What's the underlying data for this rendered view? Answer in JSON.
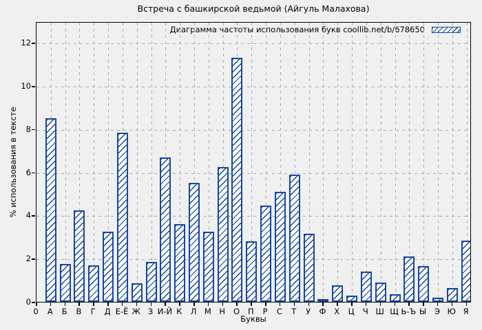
{
  "colors": {
    "bar_blue": "#1447a0",
    "bar_fill": "#fbfbfb",
    "grid_gray": "#a9a9a9",
    "background": "#f0f0f0",
    "axis_black": "#000000"
  },
  "chart_data": {
    "type": "bar",
    "title": "Встреча с башкирской ведьмой (Айгуль Малахова)",
    "legend": "Диаграмма частоты использования букв coollib.net/b/678650",
    "legend_position": "top-right-inside",
    "xlabel": "Буквы",
    "ylabel": "% использования в тексте",
    "origin_tick_label": "0",
    "categories": [
      "А",
      "Б",
      "В",
      "Г",
      "Д",
      "Е-Ё",
      "Ж",
      "З",
      "И-Й",
      "К",
      "Л",
      "М",
      "Н",
      "О",
      "П",
      "Р",
      "С",
      "Т",
      "У",
      "Ф",
      "Х",
      "Ц",
      "Ч",
      "Ш",
      "Щ",
      "Ь-Ъ",
      "Ы",
      "Э",
      "Ю",
      "Я"
    ],
    "values": [
      8.5,
      1.75,
      4.25,
      1.7,
      3.25,
      7.85,
      0.85,
      1.85,
      6.7,
      3.6,
      5.5,
      3.25,
      6.25,
      11.3,
      2.8,
      4.45,
      5.1,
      5.9,
      3.15,
      0.1,
      0.75,
      0.3,
      1.4,
      0.9,
      0.35,
      2.1,
      1.65,
      0.2,
      0.65,
      2.85
    ],
    "yticks": [
      0,
      2,
      4,
      6,
      8,
      10,
      12
    ],
    "ylim": [
      0,
      13
    ],
    "grid": true,
    "bar_style": "diagonal-hatch"
  }
}
